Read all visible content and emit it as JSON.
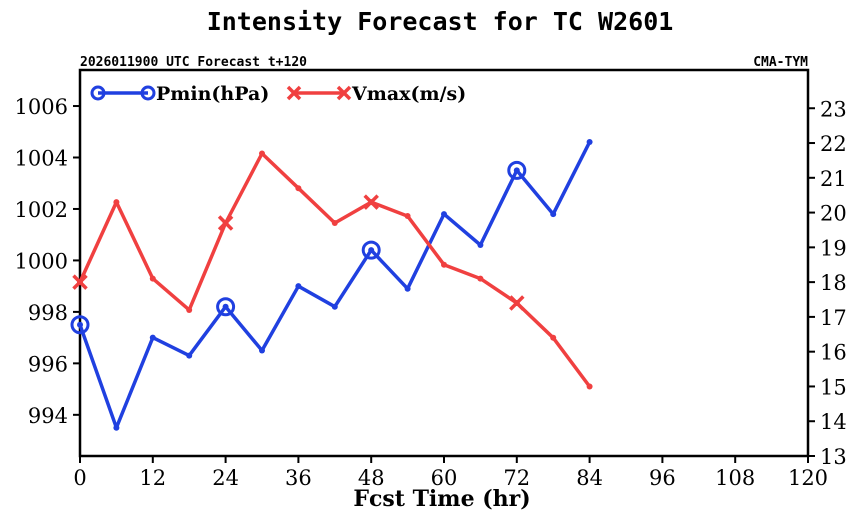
{
  "chart_data": {
    "type": "line",
    "title": "Intensity Forecast for TC W2601",
    "subtitle_left": "2026011900 UTC Forecast t+120",
    "subtitle_right": "CMA-TYM",
    "xlabel": "Fcst Time (hr)",
    "xlim": [
      0,
      120
    ],
    "x_ticks": [
      0,
      12,
      24,
      36,
      48,
      60,
      72,
      84,
      96,
      108,
      120
    ],
    "y_left": {
      "ylim": [
        992.4,
        1007.4
      ],
      "ticks": [
        994,
        996,
        998,
        1000,
        1002,
        1004,
        1006
      ]
    },
    "y_right": {
      "ylim": [
        13,
        24.1
      ],
      "ticks": [
        13,
        14,
        15,
        16,
        17,
        18,
        19,
        20,
        21,
        22,
        23
      ]
    },
    "legend_position": "top-left",
    "series": [
      {
        "name": "Pmin(hPa)",
        "axis": "left",
        "color": "#2040e0",
        "marker": "circle",
        "marker_every": 24,
        "x": [
          0,
          6,
          12,
          18,
          24,
          30,
          36,
          42,
          48,
          54,
          60,
          66,
          72,
          78,
          84
        ],
        "values": [
          997.5,
          993.5,
          997.0,
          996.3,
          998.2,
          996.5,
          999.0,
          998.2,
          1000.4,
          998.9,
          1001.8,
          1000.6,
          1003.5,
          1001.8,
          1004.6
        ]
      },
      {
        "name": "Vmax(m/s)",
        "axis": "right",
        "color": "#f04040",
        "marker": "x",
        "marker_every": 24,
        "x": [
          0,
          6,
          12,
          18,
          24,
          30,
          36,
          42,
          48,
          54,
          60,
          66,
          72,
          78,
          84
        ],
        "values": [
          18.0,
          20.3,
          18.1,
          17.2,
          19.7,
          21.7,
          20.7,
          19.7,
          20.3,
          19.9,
          18.5,
          18.1,
          17.4,
          16.4,
          15.0
        ]
      }
    ]
  }
}
